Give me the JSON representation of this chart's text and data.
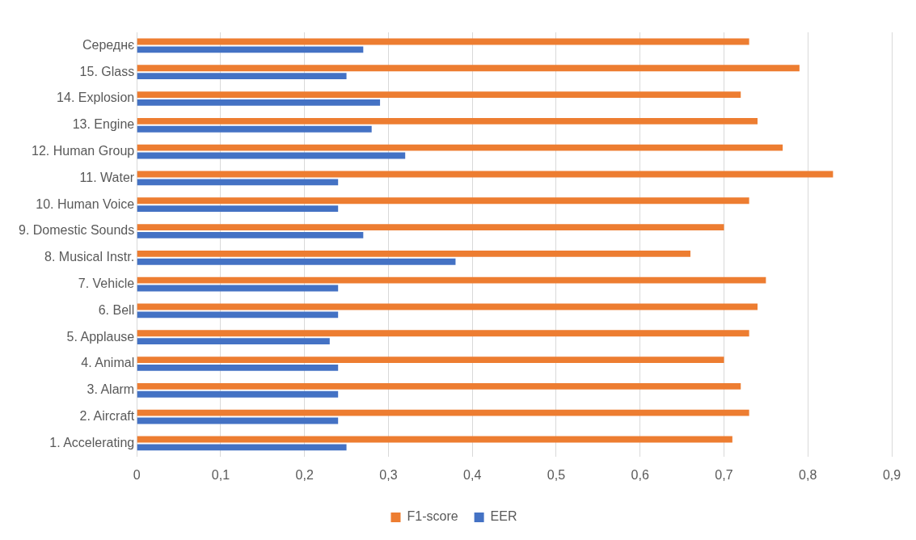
{
  "chart_data": {
    "type": "bar",
    "orientation": "horizontal",
    "categories": [
      "Середнє",
      "15. Glass",
      "14. Explosion",
      "13. Engine",
      "12. Human Group",
      "11. Water",
      "10. Human Voice",
      "9. Domestic Sounds",
      "8. Musical Instr.",
      "7. Vehicle",
      "6. Bell",
      "5. Applause",
      "4. Animal",
      "3. Alarm",
      "2. Aircraft",
      "1. Accelerating"
    ],
    "series": [
      {
        "name": "F1-score",
        "color": "#ed7d31",
        "values": [
          0.73,
          0.79,
          0.72,
          0.74,
          0.77,
          0.83,
          0.73,
          0.7,
          0.66,
          0.75,
          0.74,
          0.73,
          0.7,
          0.72,
          0.73,
          0.71
        ]
      },
      {
        "name": "EER",
        "color": "#4472c4",
        "values": [
          0.27,
          0.25,
          0.29,
          0.28,
          0.32,
          0.24,
          0.24,
          0.27,
          0.38,
          0.24,
          0.24,
          0.23,
          0.24,
          0.24,
          0.24,
          0.25
        ]
      }
    ],
    "xlim": [
      0,
      0.9
    ],
    "xticks": [
      0,
      {
        "value": 0.1,
        "label": "0,1"
      },
      {
        "value": 0.2,
        "label": "0,2"
      },
      {
        "value": 0.3,
        "label": "0,3"
      },
      {
        "value": 0.4,
        "label": "0,4"
      },
      {
        "value": 0.5,
        "label": "0,5"
      },
      {
        "value": 0.6,
        "label": "0,6"
      },
      {
        "value": 0.7,
        "label": "0,7"
      },
      {
        "value": 0.8,
        "label": "0,8"
      },
      {
        "value": 0.9,
        "label": "0,9"
      }
    ],
    "grid": "x",
    "legend": "bottom"
  }
}
